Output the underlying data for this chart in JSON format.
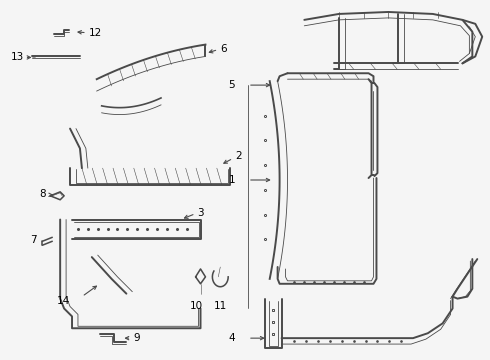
{
  "bg_color": "#f5f5f5",
  "line_color": "#4a4a4a",
  "label_color": "#000000",
  "fig_width": 4.9,
  "fig_height": 3.6,
  "dpi": 100,
  "lw_outer": 1.4,
  "lw_inner": 0.6,
  "lw_detail": 0.4,
  "font_size": 7.5
}
